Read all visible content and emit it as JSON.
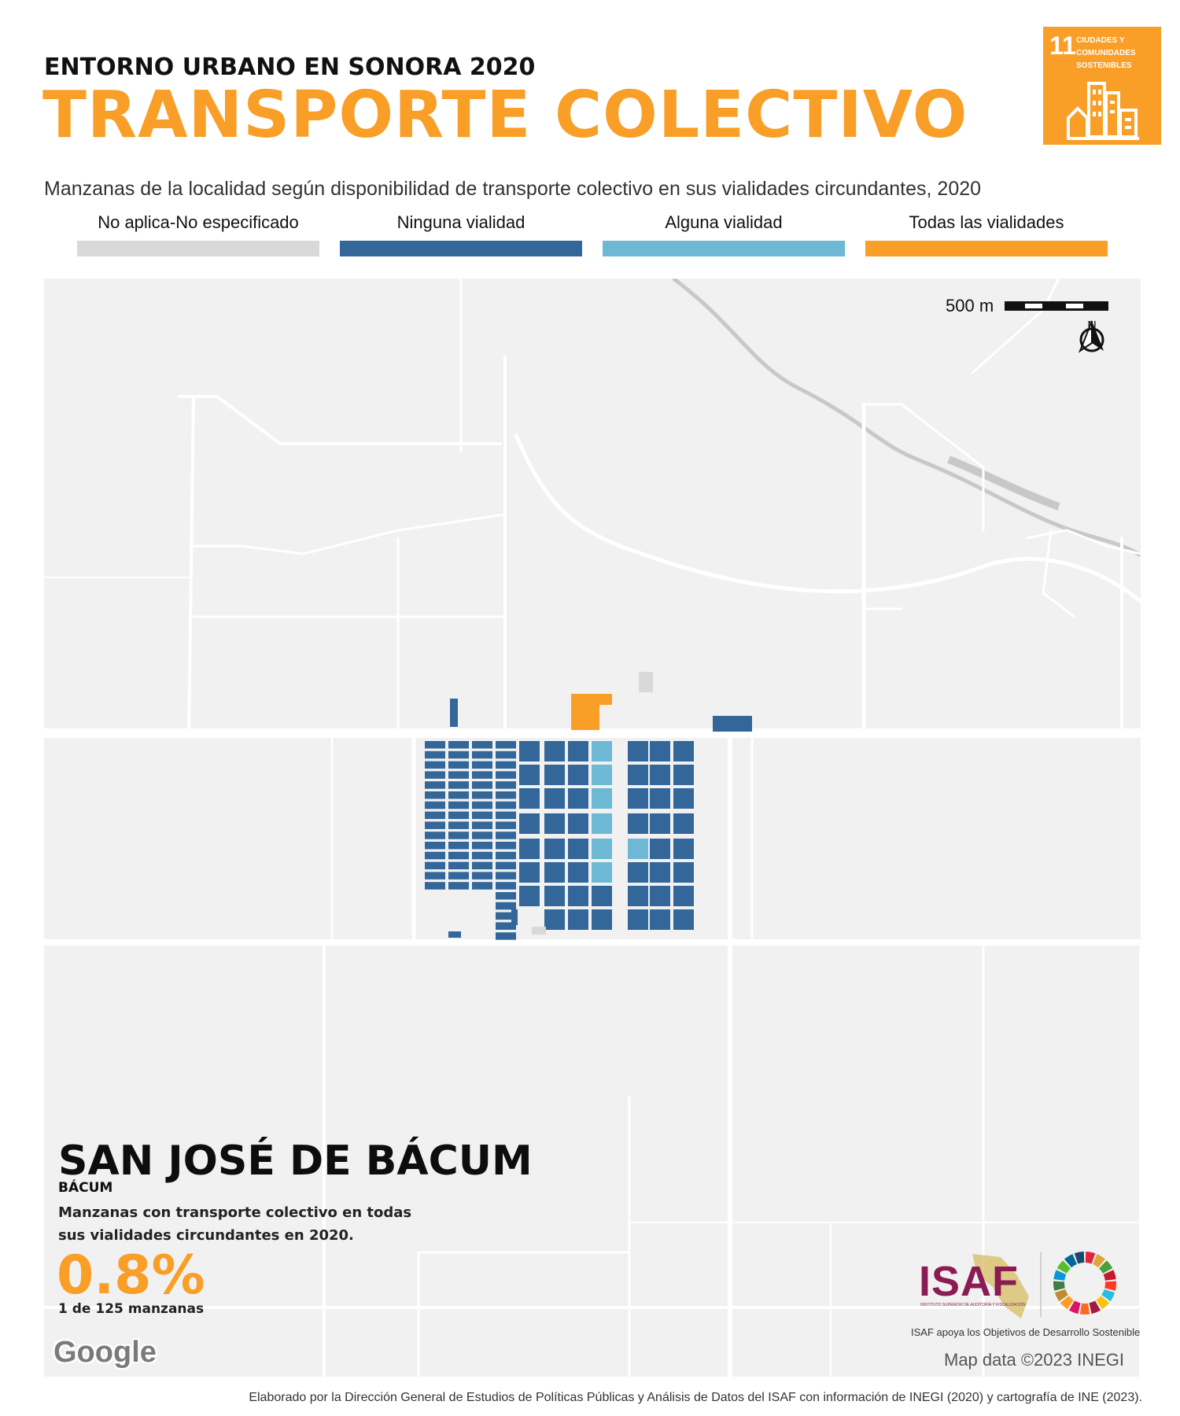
{
  "header": {
    "kicker": "ENTORNO URBANO EN SONORA 2020",
    "title": "TRANSPORTE COLECTIVO",
    "subtitle": "Manzanas de la localidad según disponibilidad de  transporte colectivo en sus vialidades circundantes, 2020"
  },
  "sdg_badge": {
    "number": "11",
    "text": "CIUDADES Y COMUNIDADES SOSTENIBLES",
    "color": "#f99e26"
  },
  "legend": [
    {
      "label": "No aplica-No especificado",
      "color": "#d9d9d9"
    },
    {
      "label": "Ninguna vialidad",
      "color": "#336699"
    },
    {
      "label": "Alguna vialidad",
      "color": "#6cb8d5"
    },
    {
      "label": "Todas las vialidades",
      "color": "#f99e26"
    }
  ],
  "map": {
    "scale_label": "500 m",
    "north_label": "N",
    "attribution": "Map data ©2023 INEGI",
    "provider": "Google",
    "background_color": "#f1f1f1",
    "road_color": "#ffffff",
    "river_color": "#c8c8c8"
  },
  "locality": {
    "name": "SAN JOSÉ DE BÁCUM",
    "municipality": "BÁCUM",
    "description": "Manzanas con transporte colectivo en todas sus vialidades circundantes en 2020.",
    "percent": "0.8%",
    "count": "1 de 125 manzanas"
  },
  "logos": {
    "isaf": "ISAF",
    "isaf_subtitle": "INSTITUTO SUPERIOR DE AUDITORÍA Y FISCALIZACIÓN",
    "caption": "ISAF apoya los Objetivos de Desarrollo Sostenible",
    "sdg_wheel_icon": "sdg-color-wheel-icon"
  },
  "footer": "Elaborado por la Dirección General de Estudios de Políticas Públicas y Análisis de Datos del ISAF con información de INEGI (2020) y cartografía de INE (2023)."
}
